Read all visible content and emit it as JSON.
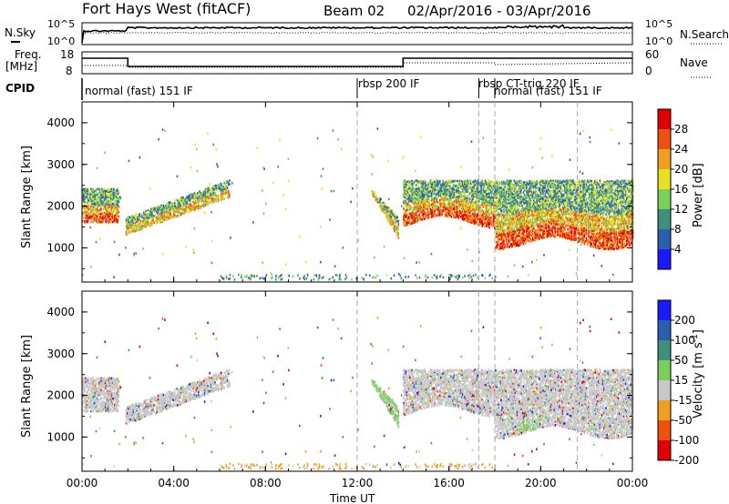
{
  "header": {
    "station": "Fort Hays West (fitACF)",
    "beam": "Beam 02",
    "date_range": "02/Apr/2016 - 03/Apr/2016"
  },
  "left_labels": {
    "nsky": "N.Sky",
    "freq": "Freq.",
    "freq_unit": "[MHz]",
    "cpid": "CPID"
  },
  "right_labels": {
    "nsearch": "N.Search",
    "nave": "Nave"
  },
  "noise_panel": {
    "left_ticks": [
      "10^5",
      "10^0"
    ],
    "right_ticks": [
      "10^5",
      "10^0"
    ]
  },
  "freq_panel": {
    "left_ticks": [
      "18",
      "8"
    ],
    "right_ticks": [
      "60",
      "0"
    ]
  },
  "cpid_segments": [
    {
      "label": "normal (fast) 151 IF",
      "start_hour": 0
    },
    {
      "label": "rbsp 200 IF",
      "start_hour": 12
    },
    {
      "label": "rbsp CT-trig 220 IF",
      "start_hour": 17.3
    },
    {
      "label": "normal (fast) 151 IF",
      "start_hour": 18
    }
  ],
  "chart_data": [
    {
      "type": "heatmap",
      "name": "power",
      "ylabel": "Slant Range [km]",
      "yticks": [
        "1000",
        "2000",
        "3000",
        "4000"
      ],
      "ylim": [
        180,
        4500
      ],
      "xlim": [
        0,
        24
      ],
      "colorbar": {
        "label": "Power [dB]",
        "ticks": [
          "4",
          "8",
          "12",
          "16",
          "20",
          "24",
          "28"
        ],
        "colors": [
          "#1a1aff",
          "#2a5fb0",
          "#3f8f7a",
          "#7ad05a",
          "#e8e020",
          "#f0a020",
          "#f05010",
          "#e00000"
        ]
      },
      "bands": [
        {
          "t0": 0.0,
          "t1": 1.6,
          "r0": 1600,
          "r1": 2400,
          "level": "high"
        },
        {
          "t0": 1.9,
          "t1": 6.4,
          "r0": 1300,
          "r1": 2600,
          "level": "mid"
        },
        {
          "t0": 12.6,
          "t1": 13.8,
          "r0": 1200,
          "r1": 2400,
          "level": "mid"
        },
        {
          "t0": 14.0,
          "t1": 24.0,
          "r0": 1100,
          "r1": 2600,
          "level": "high"
        }
      ]
    },
    {
      "type": "heatmap",
      "name": "velocity",
      "ylabel": "Slant Range [km]",
      "yticks": [
        "1000",
        "2000",
        "3000",
        "4000"
      ],
      "ylim": [
        180,
        4500
      ],
      "xlim": [
        0,
        24
      ],
      "colorbar": {
        "label": "Velocity [m s^-1]",
        "ticks": [
          "200",
          "100",
          "50",
          "15",
          "-15",
          "-50",
          "-100",
          "-200"
        ],
        "colors": [
          "#1a1aff",
          "#2a5fb0",
          "#3f8f7a",
          "#7ad05a",
          "#c8c8c8",
          "#f0a020",
          "#f05010",
          "#e00000"
        ]
      }
    }
  ],
  "x_axis": {
    "ticks": [
      "00:00",
      "04:00",
      "08:00",
      "12:00",
      "16:00",
      "20:00",
      "00:00"
    ],
    "label": "Time UT"
  }
}
